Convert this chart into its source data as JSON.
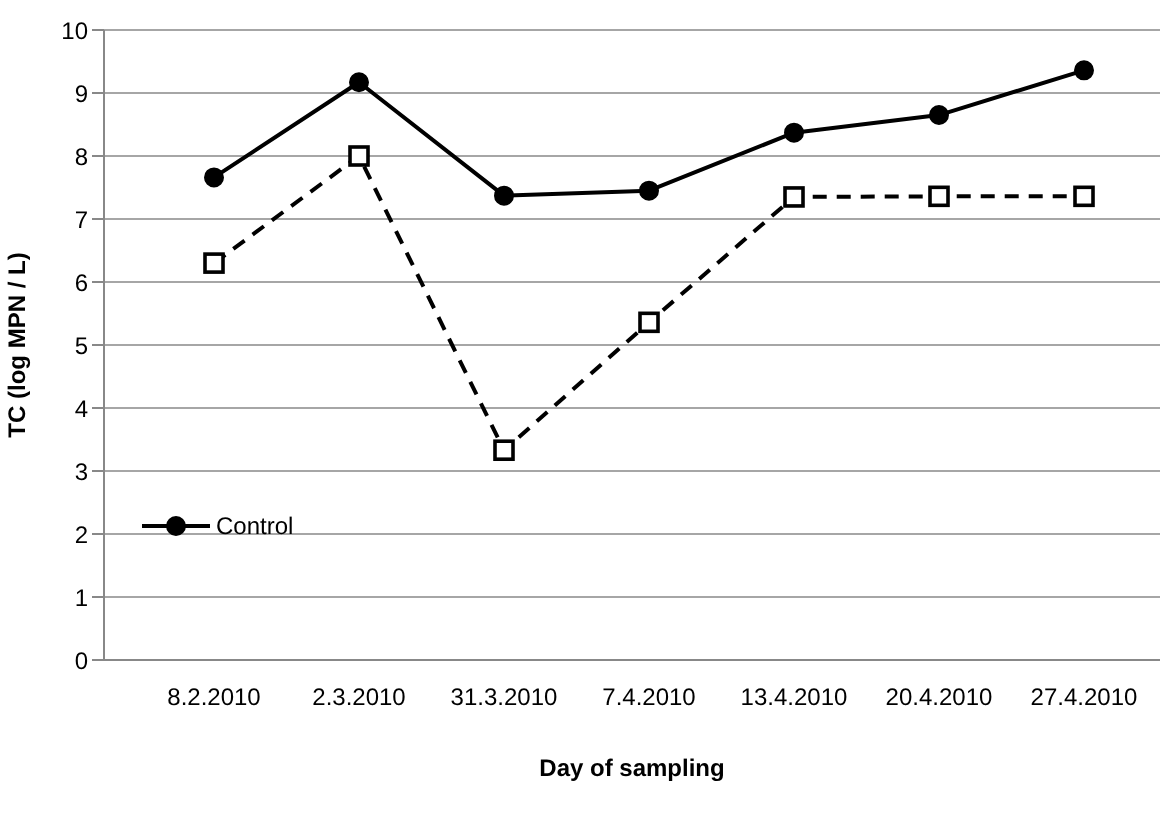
{
  "chart_data": {
    "type": "line",
    "xlabel": "Day of sampling",
    "ylabel": "TC  (log MPN / L)",
    "categories": [
      "8.2.2010",
      "2.3.2010",
      "31.3.2010",
      "7.4.2010",
      "13.4.2010",
      "20.4.2010",
      "27.4.2010"
    ],
    "series": [
      {
        "name": "Control",
        "color": "#000000",
        "marker": "circle",
        "line_style": "solid",
        "values": [
          7.66,
          9.17,
          7.37,
          7.45,
          8.37,
          8.65,
          9.36
        ]
      },
      {
        "color": "#000000",
        "marker": "square",
        "line_style": "dashed",
        "values": [
          6.3,
          8.0,
          3.33,
          5.36,
          7.35,
          7.36,
          7.36
        ]
      }
    ],
    "ylim": [
      0,
      10
    ],
    "yticks": [
      0,
      1,
      2,
      3,
      4,
      5,
      6,
      7,
      8,
      9,
      10
    ],
    "grid": "y",
    "legend": "bottom left"
  }
}
